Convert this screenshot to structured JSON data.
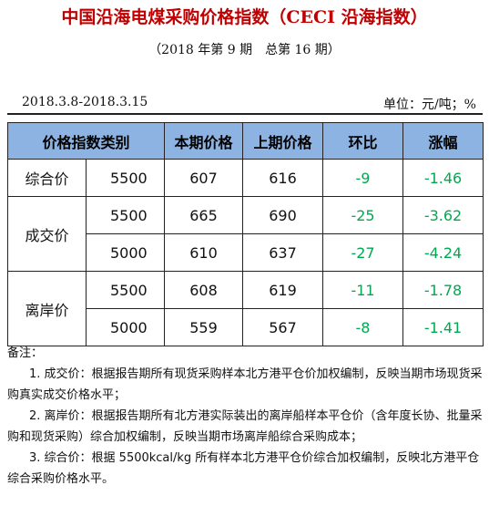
{
  "header": {
    "title": "中国沿海电煤采购价格指数（CECI 沿海指数）",
    "subtitle": "（2018 年第 9 期　总第 16 期）",
    "date_range": "2018.3.8-2018.3.15",
    "unit": "单位：元/吨；%"
  },
  "table": {
    "columns": [
      "价格指数类别",
      "本期价格",
      "上期价格",
      "环比",
      "涨幅"
    ],
    "groups": [
      {
        "label": "综合价",
        "rows": [
          {
            "kcal": "5500",
            "current": "607",
            "previous": "616",
            "mom": "-9",
            "pct": "-1.46"
          }
        ]
      },
      {
        "label": "成交价",
        "rows": [
          {
            "kcal": "5500",
            "current": "665",
            "previous": "690",
            "mom": "-25",
            "pct": "-3.62"
          },
          {
            "kcal": "5000",
            "current": "610",
            "previous": "637",
            "mom": "-27",
            "pct": "-4.24"
          }
        ]
      },
      {
        "label": "离岸价",
        "rows": [
          {
            "kcal": "5500",
            "current": "608",
            "previous": "619",
            "mom": "-11",
            "pct": "-1.78"
          },
          {
            "kcal": "5000",
            "current": "559",
            "previous": "567",
            "mom": "-8",
            "pct": "-1.41"
          }
        ]
      }
    ]
  },
  "notes": {
    "heading": "备注：",
    "items": [
      "1. 成交价：根据报告期所有现货采购样本北方港平仓价加权编制，反映当期市场现货采购真实成交价格水平；",
      "2. 离岸价：根据报告期所有北方港实际装出的离岸船样本平仓价（含年度长协、批量采购和现货采购）综合加权编制，反映当期市场离岸船综合采购成本；",
      "3. 综合价：根据 5500kcal/kg 所有样本北方港平仓价综合加权编制，反映北方港平仓综合采购价格水平。"
    ]
  },
  "colors": {
    "title": "#c00000",
    "header_bg": "#8db3e2",
    "change_green": "#00a94f"
  }
}
